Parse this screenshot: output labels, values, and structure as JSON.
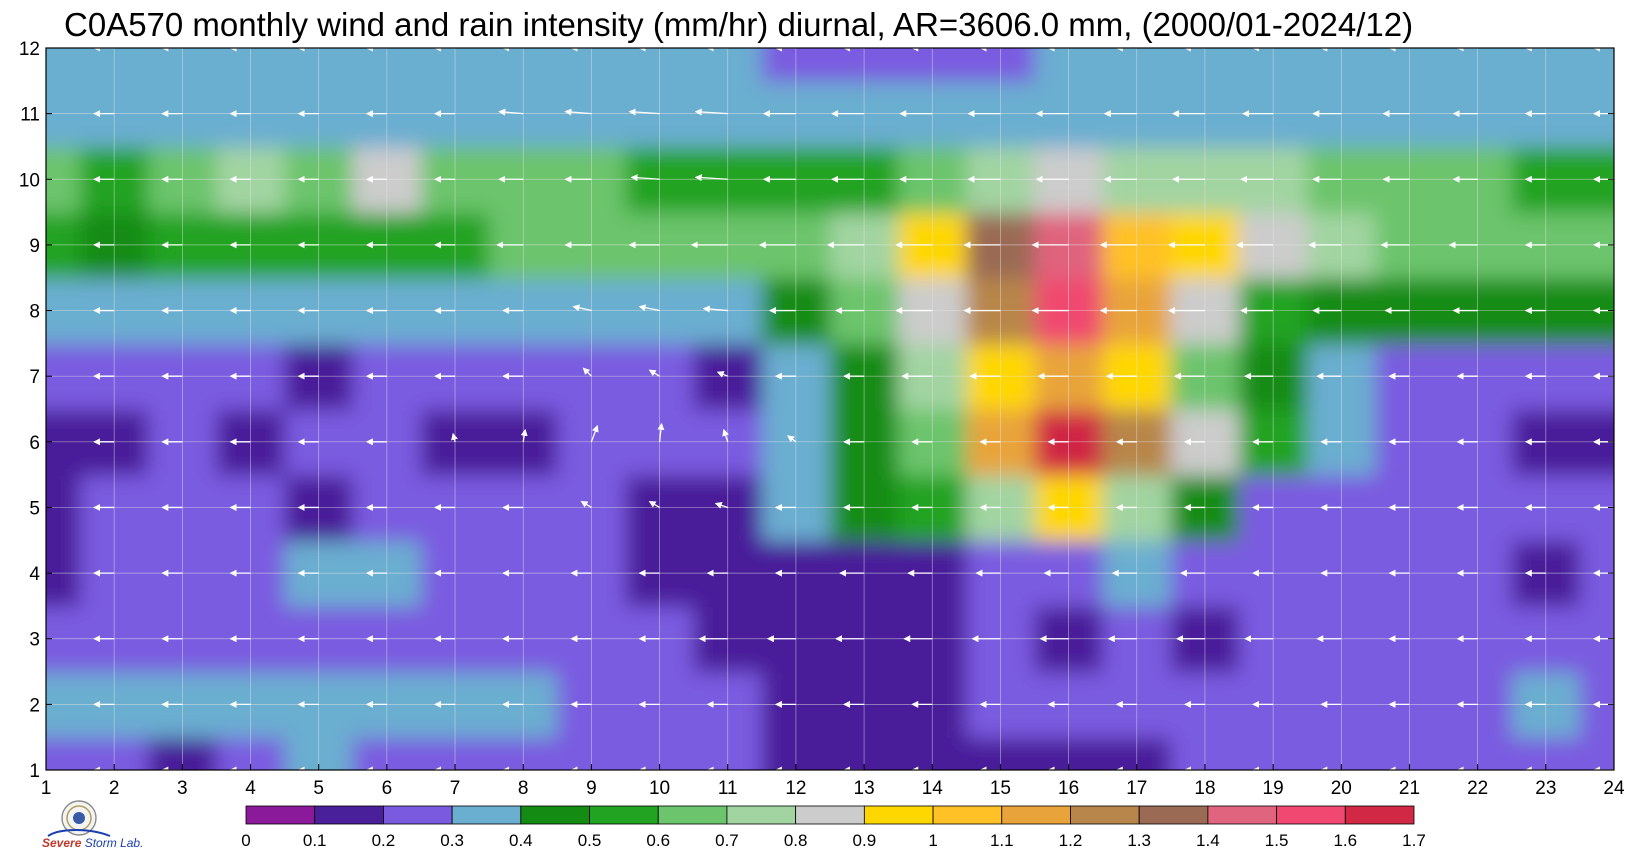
{
  "chart_data": {
    "type": "heatmap",
    "title": "C0A570 monthly wind and rain intensity (mm/hr) diurnal, AR=3606.0 mm, (2000/01-2024/12)",
    "x_ticks": [
      "1",
      "2",
      "3",
      "4",
      "5",
      "6",
      "7",
      "8",
      "9",
      "10",
      "11",
      "12",
      "13",
      "14",
      "15",
      "16",
      "17",
      "18",
      "19",
      "20",
      "21",
      "22",
      "23",
      "24"
    ],
    "y_ticks": [
      "1",
      "2",
      "3",
      "4",
      "5",
      "6",
      "7",
      "8",
      "9",
      "10",
      "11",
      "12"
    ],
    "xlim": [
      1,
      24
    ],
    "ylim": [
      1,
      12
    ],
    "grid": true,
    "colorbar": {
      "placement": "bottom",
      "levels": [
        "0",
        "0.1",
        "0.2",
        "0.3",
        "0.4",
        "0.5",
        "0.6",
        "0.7",
        "0.8",
        "0.9",
        "1",
        "1.1",
        "1.2",
        "1.3",
        "1.4",
        "1.5",
        "1.6",
        "1.7"
      ],
      "colors": [
        "#8b1a9b",
        "#4a1f9a",
        "#7a5be0",
        "#6aaed0",
        "#148c14",
        "#22a322",
        "#6cc46c",
        "#a2d4a2",
        "#cccccc",
        "#ffd700",
        "#ffc125",
        "#e8a43a",
        "#b8864a",
        "#9a6a55",
        "#e0647e",
        "#f04870",
        "#d02845"
      ]
    },
    "row_levels": [
      [
        2,
        2,
        1,
        2,
        3,
        2,
        2,
        2,
        2,
        2,
        2,
        1,
        1,
        1,
        1,
        1,
        1,
        2,
        2,
        2,
        2,
        2,
        2,
        2
      ],
      [
        3,
        3,
        3,
        3,
        3,
        3,
        3,
        3,
        2,
        2,
        2,
        1,
        1,
        1,
        2,
        2,
        2,
        2,
        2,
        2,
        2,
        2,
        3,
        2
      ],
      [
        2,
        2,
        2,
        2,
        2,
        2,
        2,
        2,
        2,
        2,
        1,
        1,
        1,
        1,
        2,
        1,
        2,
        1,
        2,
        2,
        2,
        2,
        2,
        2
      ],
      [
        1,
        2,
        2,
        2,
        3,
        3,
        2,
        2,
        2,
        1,
        1,
        1,
        1,
        1,
        2,
        2,
        3,
        2,
        2,
        2,
        2,
        2,
        1,
        2
      ],
      [
        1,
        2,
        2,
        2,
        1,
        2,
        2,
        2,
        2,
        1,
        1,
        3,
        4,
        5,
        7,
        9,
        7,
        4,
        2,
        2,
        2,
        2,
        2,
        2
      ],
      [
        1,
        1,
        2,
        1,
        2,
        2,
        1,
        1,
        2,
        2,
        2,
        3,
        4,
        6,
        11,
        16,
        12,
        8,
        5,
        3,
        2,
        2,
        1,
        1
      ],
      [
        2,
        2,
        2,
        2,
        1,
        2,
        2,
        2,
        2,
        2,
        1,
        3,
        4,
        7,
        9,
        11,
        9,
        6,
        4,
        3,
        2,
        2,
        2,
        2
      ],
      [
        3,
        3,
        3,
        3,
        3,
        3,
        3,
        3,
        3,
        3,
        3,
        4,
        6,
        8,
        12,
        15,
        11,
        8,
        5,
        4,
        4,
        4,
        4,
        4
      ],
      [
        5,
        4,
        5,
        5,
        5,
        5,
        5,
        6,
        6,
        6,
        6,
        6,
        7,
        9,
        13,
        14,
        10,
        9,
        8,
        7,
        6,
        6,
        6,
        6
      ],
      [
        6,
        5,
        6,
        7,
        6,
        8,
        6,
        6,
        6,
        5,
        5,
        5,
        5,
        6,
        7,
        8,
        7,
        7,
        7,
        6,
        6,
        6,
        5,
        5
      ],
      [
        3,
        3,
        3,
        3,
        3,
        3,
        3,
        3,
        3,
        3,
        3,
        3,
        3,
        3,
        3,
        3,
        3,
        3,
        3,
        3,
        3,
        3,
        3,
        3
      ],
      [
        3,
        3,
        3,
        3,
        3,
        3,
        3,
        3,
        3,
        3,
        3,
        2,
        2,
        2,
        2,
        3,
        3,
        3,
        3,
        3,
        3,
        3,
        3,
        3
      ]
    ],
    "wind_u": [
      [
        -1,
        -1,
        -1,
        -1,
        -1,
        -1,
        -1,
        -1,
        -1,
        -1,
        -1,
        -1,
        -1,
        -1,
        -1,
        -1,
        -1,
        -1,
        -1,
        -1,
        -1,
        -1,
        -1,
        -1
      ],
      [
        -1,
        -1,
        -1,
        -1,
        -1,
        -1,
        -1,
        -1,
        -1,
        -1,
        -1,
        -1,
        -1,
        -1,
        -1,
        -1,
        -1,
        -1,
        -1,
        -1,
        -1,
        -1,
        -1,
        -1
      ],
      [
        -1,
        -1,
        -1,
        -1,
        -1,
        -1,
        -1,
        -1,
        -1,
        -1,
        -1.4,
        -1.4,
        -1.4,
        -1.4,
        -1.4,
        -1.4,
        -1.4,
        -1.4,
        -1.4,
        -1.2,
        -1,
        -1,
        -1,
        -1
      ],
      [
        -1,
        -1,
        -1,
        -1,
        -1,
        -1,
        -1,
        -1,
        -1,
        -1,
        -1,
        -1,
        -1.2,
        -1.2,
        -1.2,
        -1.2,
        -1.2,
        -1.2,
        -1,
        -1,
        -1,
        -1,
        -1,
        -1
      ],
      [
        -1,
        -1,
        -1,
        -1,
        -1,
        -1,
        -1,
        -1,
        -0.5,
        -0.5,
        -0.6,
        -1,
        -1,
        -1,
        -1,
        -1,
        -1,
        -1,
        -1,
        -1,
        -1,
        -1,
        -1,
        -1
      ],
      [
        -1,
        -1,
        -1,
        -1,
        -1,
        -1,
        -0.1,
        0.1,
        0.3,
        0.1,
        -0.2,
        -0.4,
        -1,
        -1,
        -1,
        -1,
        -1,
        -1,
        -1,
        -1,
        -1,
        -1,
        -1,
        -1
      ],
      [
        -1,
        -1,
        -1,
        -1,
        -1,
        -1,
        -1,
        -1,
        -0.4,
        -0.5,
        -0.5,
        -1,
        -1,
        -1.5,
        -1.5,
        -1.5,
        -1.5,
        -1.5,
        -1.4,
        -1.2,
        -1,
        -1,
        -1,
        -1
      ],
      [
        -1,
        -1,
        -1,
        -1,
        -1,
        -1,
        -1,
        -1,
        -0.9,
        -1,
        -1.2,
        -1.3,
        -1.4,
        -1.8,
        -1.8,
        -1.8,
        -1.8,
        -1.8,
        -1.6,
        -1.4,
        -1.2,
        -1.2,
        -1,
        -1
      ],
      [
        -1,
        -1,
        -1,
        -1,
        -1,
        -1,
        -1,
        -1.3,
        -1.3,
        -1.5,
        -1.8,
        -1.8,
        -1.8,
        -1.8,
        -1.8,
        -1.8,
        -1.8,
        -1.8,
        -1.8,
        -1.6,
        -1.4,
        -1.4,
        -1,
        -1
      ],
      [
        -1,
        -1,
        -1,
        -1,
        -1,
        -1,
        -1,
        -1.2,
        -1.3,
        -1.4,
        -1.6,
        -1.6,
        -1.6,
        -1.6,
        -1.6,
        -1.6,
        -1.6,
        -1.6,
        -1.6,
        -1.4,
        -1.3,
        -1.2,
        -1,
        -1
      ],
      [
        -1,
        -1,
        -1,
        -1,
        -1,
        -1,
        -1,
        -1.2,
        -1.3,
        -1.5,
        -1.6,
        -1.6,
        -1.6,
        -1.6,
        -1.6,
        -1.6,
        -1.6,
        -1.6,
        -1.5,
        -1.4,
        -1.3,
        -1.2,
        -1,
        -1
      ],
      [
        -1,
        -1,
        -1,
        -1,
        -1,
        -1,
        -1,
        -1,
        -1,
        -1,
        -1,
        -1,
        -1,
        -1,
        -1,
        -1,
        -1,
        -1,
        -1,
        -1,
        -1,
        -1,
        -1,
        -1
      ]
    ],
    "wind_v": [
      [
        0,
        0,
        0,
        0,
        0,
        0,
        0,
        0,
        0,
        0,
        0,
        0,
        0,
        0,
        0,
        0,
        0,
        0,
        0,
        0,
        0,
        0,
        0,
        0
      ],
      [
        0,
        0,
        0,
        0,
        0,
        0,
        0,
        0,
        0,
        0,
        0,
        0,
        0,
        0,
        0,
        0,
        0,
        0,
        0,
        0,
        0,
        0,
        0,
        0
      ],
      [
        0,
        0,
        0,
        0,
        0,
        0,
        0,
        0,
        0,
        0,
        0,
        0,
        0,
        0,
        0,
        0,
        0,
        0,
        0,
        0,
        0,
        0,
        0,
        0
      ],
      [
        0,
        0,
        0,
        0,
        0,
        0,
        0,
        0,
        0,
        0,
        0,
        0,
        0,
        0,
        0,
        0,
        0,
        0,
        0,
        0,
        0,
        0,
        0,
        0
      ],
      [
        0,
        0,
        0,
        0,
        0,
        0,
        0,
        0,
        0.3,
        0.3,
        0.2,
        0,
        0,
        0,
        0,
        0,
        0,
        0,
        0,
        0,
        0,
        0,
        0,
        0
      ],
      [
        0,
        0,
        0,
        0,
        0,
        0,
        0.4,
        0.6,
        0.8,
        0.9,
        0.6,
        0.3,
        0,
        0,
        0,
        0,
        0,
        0,
        0,
        0,
        0,
        0,
        0,
        0
      ],
      [
        0,
        0,
        0,
        0,
        0,
        0,
        0,
        0,
        0.4,
        0.3,
        0.2,
        0,
        0,
        0,
        0,
        0,
        0,
        0,
        0,
        0,
        0,
        0,
        0,
        0
      ],
      [
        0,
        0,
        0,
        0,
        0,
        0,
        0,
        0,
        0.2,
        0.2,
        0.1,
        0,
        0,
        0,
        0,
        0,
        0,
        0,
        0,
        0,
        0,
        0,
        0,
        0
      ],
      [
        0,
        0,
        0,
        0,
        0,
        0,
        0,
        0,
        0,
        0,
        0,
        0,
        0,
        0,
        0,
        0,
        0,
        0,
        0,
        0,
        0,
        0,
        0,
        0
      ],
      [
        0,
        0,
        0,
        0,
        0,
        0,
        0,
        0,
        0,
        0.1,
        0.1,
        0,
        0,
        0,
        0,
        0,
        0,
        0,
        0,
        0,
        0,
        0,
        0,
        0
      ],
      [
        0,
        0,
        0,
        0,
        0,
        0,
        0,
        0.1,
        0.1,
        0.1,
        0.1,
        0,
        0,
        0,
        0,
        0,
        0,
        0,
        0,
        0,
        0,
        0,
        0,
        0
      ],
      [
        0,
        0,
        0,
        0,
        0,
        0,
        0,
        0,
        0,
        0,
        0,
        0,
        0,
        0,
        0,
        0,
        0,
        0,
        0,
        0,
        0,
        0,
        0,
        0
      ]
    ]
  },
  "logo": {
    "text_a": "Severe",
    "text_b": "Storm",
    "text_c": "Lab."
  }
}
